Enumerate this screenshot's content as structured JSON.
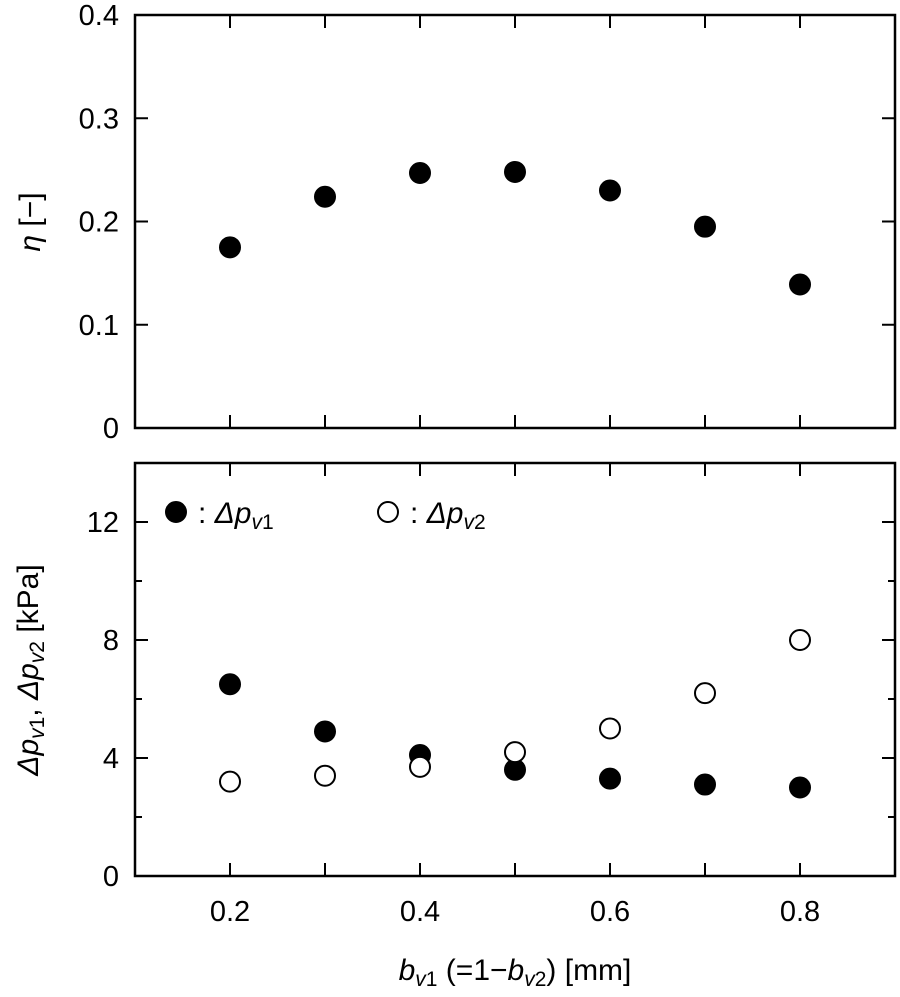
{
  "chart_data": [
    {
      "type": "scatter",
      "title": "",
      "ylabel": "η [−]",
      "xlim": [
        0.1,
        0.9
      ],
      "ylim": [
        0,
        0.4
      ],
      "yticks": [
        "0",
        "0.1",
        "0.2",
        "0.3",
        "0.4"
      ],
      "grid": false,
      "series": [
        {
          "marker": "filled-circle",
          "x": [
            0.2,
            0.3,
            0.4,
            0.5,
            0.6,
            0.7,
            0.8
          ],
          "y": [
            0.175,
            0.224,
            0.247,
            0.248,
            0.23,
            0.195,
            0.139
          ]
        }
      ]
    },
    {
      "type": "scatter",
      "title": "",
      "ylabel": "Δpv1, Δpv2 [kPa]",
      "xlabel": "bv1 (=1−bv2) [mm]",
      "xlim": [
        0.1,
        0.9
      ],
      "ylim": [
        0,
        14
      ],
      "xticks": [
        "0.2",
        "0.4",
        "0.6",
        "0.8"
      ],
      "yticks": [
        "0",
        "4",
        "8",
        "12"
      ],
      "grid": false,
      "legend": "top-left",
      "series": [
        {
          "name": ": Δpv1",
          "marker": "filled-circle",
          "x": [
            0.2,
            0.3,
            0.4,
            0.5,
            0.6,
            0.7,
            0.8
          ],
          "y": [
            6.5,
            4.9,
            4.1,
            3.6,
            3.3,
            3.1,
            3.0
          ]
        },
        {
          "name": ": Δpv2",
          "marker": "open-circle",
          "x": [
            0.2,
            0.3,
            0.4,
            0.5,
            0.6,
            0.7,
            0.8
          ],
          "y": [
            3.2,
            3.4,
            3.7,
            4.2,
            5.0,
            6.2,
            8.0
          ]
        }
      ]
    }
  ]
}
